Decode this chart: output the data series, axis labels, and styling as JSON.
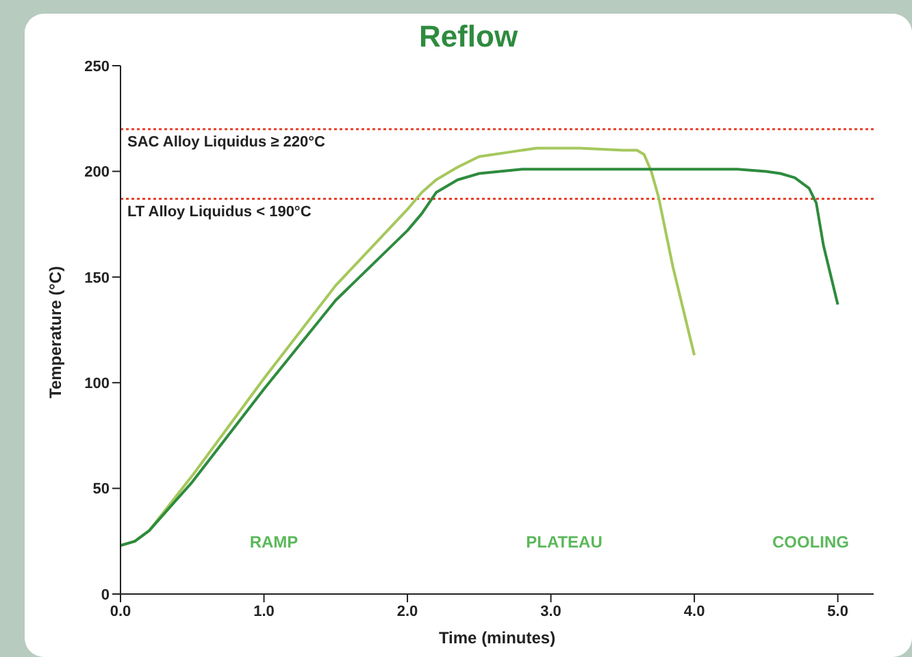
{
  "chart_data": {
    "type": "line",
    "title": "Reflow",
    "xlabel": "Time (minutes)",
    "ylabel": "Temperature (°C)",
    "xlim": [
      0,
      5.25
    ],
    "xticks": [
      {
        "value": 0,
        "label": "0.0"
      },
      {
        "value": 1,
        "label": "1.0"
      },
      {
        "value": 2,
        "label": "2.0"
      },
      {
        "value": 3,
        "label": "3.0"
      },
      {
        "value": 4,
        "label": "4.0"
      },
      {
        "value": 5,
        "label": "5.0"
      }
    ],
    "ylim": [
      0,
      250
    ],
    "yticks": [
      0,
      50,
      100,
      150,
      200,
      250
    ],
    "marker": "none",
    "line_style": "solid",
    "series": [
      {
        "color": "#a5c85c",
        "x": [
          0,
          0.1,
          0.2,
          0.5,
          1,
          1.5,
          2,
          2.1,
          2.2,
          2.35,
          2.5,
          2.7,
          2.9,
          3.2,
          3.5,
          3.6,
          3.65,
          3.7,
          3.75,
          3.85,
          4
        ],
        "values": [
          23,
          25,
          30,
          56,
          102,
          146,
          182,
          190,
          196,
          202,
          207,
          209,
          211,
          211,
          210,
          210,
          208,
          200,
          188,
          155,
          113
        ]
      },
      {
        "color": "#2e8b3e",
        "x": [
          0,
          0.1,
          0.2,
          0.5,
          1,
          1.5,
          2,
          2.1,
          2.2,
          2.35,
          2.5,
          2.8,
          3,
          3.5,
          4,
          4.3,
          4.5,
          4.6,
          4.7,
          4.8,
          4.85,
          4.9,
          5
        ],
        "values": [
          23,
          25,
          30,
          53,
          97,
          139,
          172,
          180,
          190,
          196,
          199,
          201,
          201,
          201,
          201,
          201,
          200,
          199,
          197,
          192,
          185,
          165,
          137
        ]
      }
    ],
    "ref_lines": [
      {
        "axis": "y",
        "value": 220,
        "label": "SAC Alloy Liquidus ≥ 220°C",
        "color": "#e8402a",
        "line_style": "dotted"
      },
      {
        "axis": "y",
        "value": 187,
        "label": "LT Alloy Liquidus < 190°C",
        "color": "#e8402a",
        "line_style": "dotted"
      }
    ],
    "annotations": [
      "RAMP",
      "PLATEAU",
      "COOLING"
    ]
  }
}
